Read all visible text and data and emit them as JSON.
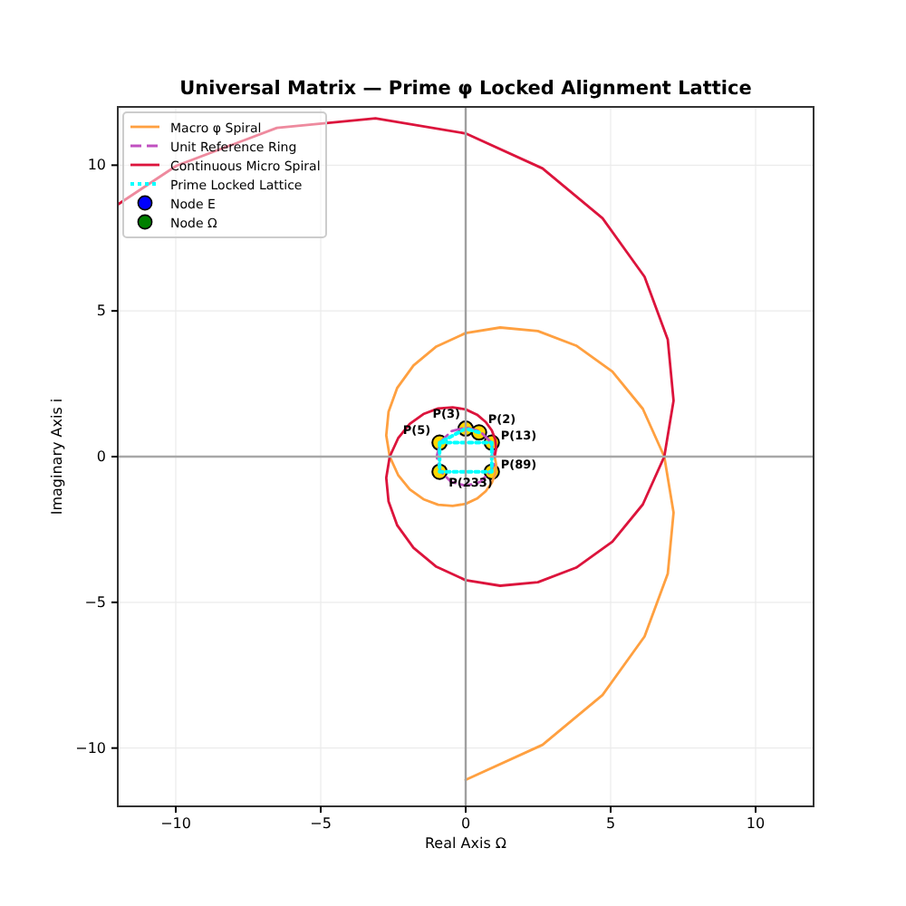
{
  "chart_data": {
    "type": "line",
    "title": "Universal Matrix — Prime φ Locked Alignment Lattice",
    "xlabel": "Real Axis Ω",
    "ylabel": "Imaginary Axis i",
    "xlim": [
      -12,
      12
    ],
    "ylim": [
      -12,
      12
    ],
    "xticks": [
      -10,
      -5,
      0,
      5,
      10
    ],
    "yticks": [
      -10,
      -5,
      0,
      5,
      10
    ],
    "grid": true,
    "legend": "top left",
    "ref_lines": [
      {
        "axis": "x",
        "value": 0,
        "color": "#a0a0a0"
      },
      {
        "axis": "y",
        "value": 0,
        "color": "#a8a8a8"
      }
    ],
    "series": [
      {
        "name": "Macro φ Spiral",
        "color": "#ffa040",
        "line_style": "solid",
        "x": [
          1,
          1.05,
          1.02,
          0.9,
          0.69,
          0.39,
          0,
          -0.45,
          -0.95,
          -1.46,
          -1.93,
          -2.33,
          -2.62,
          -2.74,
          -2.66,
          -2.36,
          -1.8,
          -1.01,
          0,
          1.19,
          2.49,
          3.81,
          5.06,
          6.11,
          6.85,
          7.17,
          6.97,
          6.17,
          4.72,
          2.65,
          0
        ],
        "values": [
          0,
          -0.28,
          -0.59,
          -0.9,
          -1.19,
          -1.44,
          -1.62,
          -1.69,
          -1.65,
          -1.46,
          -1.12,
          -0.63,
          0,
          0.73,
          1.54,
          2.36,
          3.13,
          3.78,
          4.24,
          4.43,
          4.31,
          3.81,
          2.92,
          1.64,
          0,
          -1.92,
          -4.02,
          -6.17,
          -8.18,
          -9.89,
          -11.09
        ]
      },
      {
        "name": "Unit Reference Ring",
        "color": "#c050c0",
        "line_style": "dashed",
        "x": [
          1,
          0.87,
          0.5,
          0,
          -0.5,
          -0.87,
          -1,
          -0.87,
          -0.5,
          0,
          0.5,
          0.87,
          0.97
        ],
        "values": [
          0,
          0.5,
          0.87,
          1,
          0.87,
          0.5,
          0,
          -0.5,
          -0.87,
          -1,
          -0.87,
          -0.5,
          -0.26
        ]
      },
      {
        "name": "Continuous Micro Spiral",
        "color": "#dc143c",
        "line_style": "solid",
        "x": [
          1,
          1.05,
          1.02,
          0.9,
          0.69,
          0.39,
          0,
          -0.45,
          -0.95,
          -1.46,
          -1.93,
          -2.33,
          -2.62,
          -2.74,
          -2.66,
          -2.36,
          -1.8,
          -1.01,
          0,
          1.19,
          2.49,
          3.81,
          5.06,
          6.11,
          6.85,
          7.17,
          6.97,
          6.17,
          4.72,
          2.65,
          0,
          -3.11,
          -6.51,
          -9.98,
          -12
        ],
        "values": [
          0,
          0.28,
          0.59,
          0.9,
          1.19,
          1.44,
          1.62,
          1.69,
          1.65,
          1.46,
          1.12,
          0.63,
          0,
          -0.73,
          -1.54,
          -2.36,
          -3.13,
          -3.78,
          -4.24,
          -4.43,
          -4.31,
          -3.81,
          -2.92,
          -1.64,
          0,
          1.92,
          4.02,
          6.17,
          8.18,
          9.89,
          11.09,
          11.61,
          11.28,
          9.98,
          8.65
        ]
      },
      {
        "name": "Prime Locked Lattice",
        "color": "#00ffff",
        "line_style": "dotted",
        "x": [
          0.46,
          0,
          -0.9,
          0.9,
          0.9,
          -0.9,
          -0.9
        ],
        "values": [
          0.83,
          0.96,
          0.48,
          0.48,
          -0.52,
          -0.52,
          0.48
        ]
      },
      {
        "name": "Node E",
        "type": "scatter",
        "color": "#0000ff",
        "marker": "circle"
      },
      {
        "name": "Node Ω",
        "type": "scatter",
        "color": "#008000",
        "marker": "circle"
      },
      {
        "type": "scatter",
        "color": "#ffd700",
        "marker": "circle",
        "x": [
          0.46,
          0,
          -0.9,
          0.9,
          0.9,
          -0.9
        ],
        "values": [
          0.83,
          0.96,
          0.48,
          0.48,
          -0.52,
          -0.52
        ]
      }
    ],
    "annotations": [
      {
        "text": "P(2)",
        "x": 0.46,
        "y": 0.83
      },
      {
        "text": "P(3)",
        "x": 0,
        "y": 0.96
      },
      {
        "text": "P(5)",
        "x": -0.9,
        "y": 0.48
      },
      {
        "text": "P(13)",
        "x": 0.9,
        "y": 0.48
      },
      {
        "text": "P(89)",
        "x": 0.9,
        "y": -0.52
      },
      {
        "text": "P(233)",
        "x": -0.9,
        "y": -0.52
      }
    ]
  }
}
